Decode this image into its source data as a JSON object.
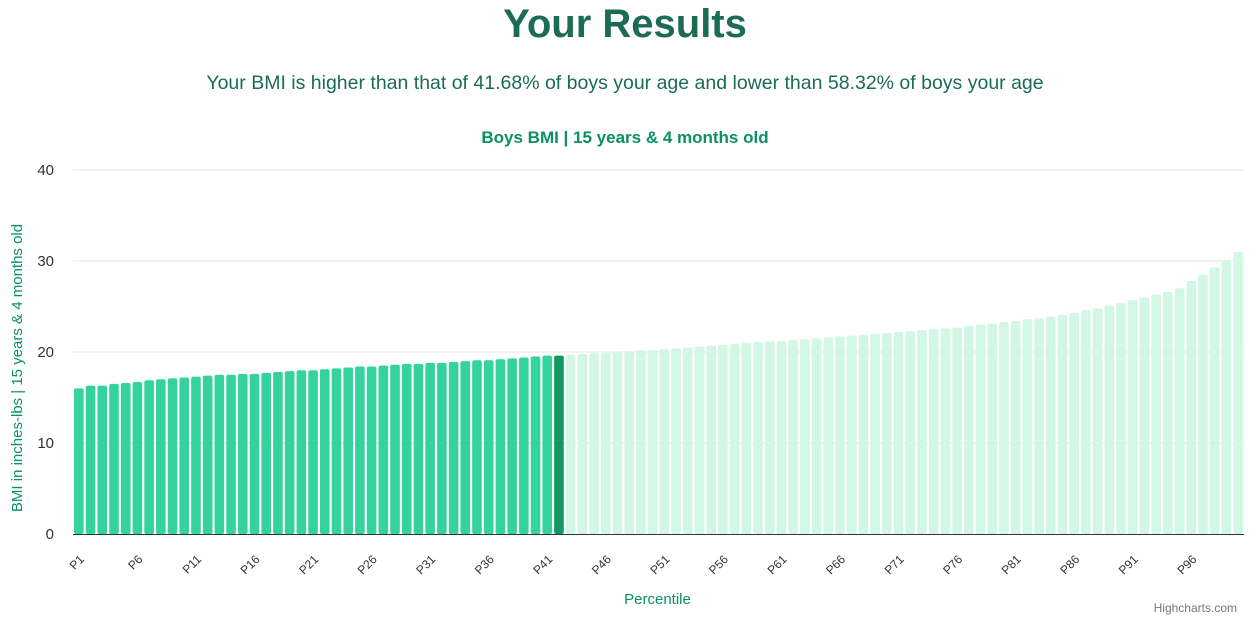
{
  "header": {
    "title": "Your Results",
    "summary": "Your BMI is higher than that of 41.68% of boys your age and lower than 58.32% of boys your age"
  },
  "credits": "Highcharts.com",
  "colors": {
    "accent": "#1b6b55",
    "chart_title": "#0a9063",
    "below_bar": "#34d39e",
    "current_bar": "#0f9960",
    "above_bar": "#d2f8e5"
  },
  "chart_data": {
    "type": "bar",
    "title": "Boys BMI | 15 years & 4 months old",
    "xlabel": "Percentile",
    "ylabel": "BMI in inches-lbs | 15 years & 4 months old",
    "ylim": [
      0,
      40
    ],
    "yticks": [
      0,
      10,
      20,
      30,
      40
    ],
    "grid": true,
    "highlight_index": 41,
    "categories": [
      "P1",
      "P2",
      "P3",
      "P4",
      "P5",
      "P6",
      "P7",
      "P8",
      "P9",
      "P10",
      "P11",
      "P12",
      "P13",
      "P14",
      "P15",
      "P16",
      "P17",
      "P18",
      "P19",
      "P20",
      "P21",
      "P22",
      "P23",
      "P24",
      "P25",
      "P26",
      "P27",
      "P28",
      "P29",
      "P30",
      "P31",
      "P32",
      "P33",
      "P34",
      "P35",
      "P36",
      "P37",
      "P38",
      "P39",
      "P40",
      "P41",
      "P42",
      "P43",
      "P44",
      "P45",
      "P46",
      "P47",
      "P48",
      "P49",
      "P50",
      "P51",
      "P52",
      "P53",
      "P54",
      "P55",
      "P56",
      "P57",
      "P58",
      "P59",
      "P60",
      "P61",
      "P62",
      "P63",
      "P64",
      "P65",
      "P66",
      "P67",
      "P68",
      "P69",
      "P70",
      "P71",
      "P72",
      "P73",
      "P74",
      "P75",
      "P76",
      "P77",
      "P78",
      "P79",
      "P80",
      "P81",
      "P82",
      "P83",
      "P84",
      "P85",
      "P86",
      "P87",
      "P88",
      "P89",
      "P90",
      "P91",
      "P92",
      "P93",
      "P94",
      "P95",
      "P96",
      "P97",
      "P98",
      "P99",
      "P100"
    ],
    "tick_labels": [
      "P1",
      "P6",
      "P11",
      "P16",
      "P21",
      "P26",
      "P31",
      "P36",
      "P41",
      "P46",
      "P51",
      "P56",
      "P61",
      "P66",
      "P71",
      "P76",
      "P81",
      "P86",
      "P91",
      "P96"
    ],
    "values": [
      16.0,
      16.3,
      16.3,
      16.5,
      16.6,
      16.7,
      16.9,
      17.0,
      17.1,
      17.2,
      17.3,
      17.4,
      17.5,
      17.5,
      17.6,
      17.6,
      17.7,
      17.8,
      17.9,
      18.0,
      18.0,
      18.1,
      18.2,
      18.3,
      18.4,
      18.4,
      18.5,
      18.6,
      18.7,
      18.7,
      18.8,
      18.8,
      18.9,
      19.0,
      19.1,
      19.1,
      19.2,
      19.3,
      19.4,
      19.5,
      19.6,
      19.6,
      19.7,
      19.8,
      19.9,
      19.9,
      20.0,
      20.1,
      20.2,
      20.2,
      20.3,
      20.4,
      20.5,
      20.6,
      20.7,
      20.8,
      20.9,
      21.0,
      21.1,
      21.2,
      21.2,
      21.3,
      21.4,
      21.5,
      21.6,
      21.7,
      21.8,
      21.9,
      22.0,
      22.1,
      22.2,
      22.3,
      22.4,
      22.5,
      22.6,
      22.7,
      22.9,
      23.0,
      23.1,
      23.3,
      23.4,
      23.6,
      23.7,
      23.9,
      24.1,
      24.3,
      24.6,
      24.8,
      25.1,
      25.4,
      25.7,
      26.0,
      26.3,
      26.6,
      27.0,
      27.8,
      28.5,
      29.3,
      30.1,
      31.0
    ]
  }
}
